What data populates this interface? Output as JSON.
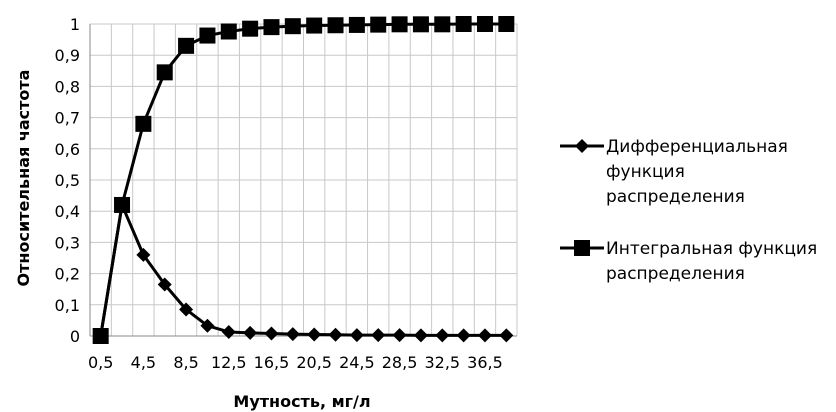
{
  "chart_data": {
    "type": "line",
    "xlabel": "Мутность, мг/л",
    "ylabel": "Относительная частота",
    "ylim": [
      0,
      1
    ],
    "y_ticks": [
      "0",
      "0,1",
      "0,2",
      "0,3",
      "0,4",
      "0,5",
      "0,6",
      "0,7",
      "0,8",
      "0,9",
      "1"
    ],
    "x_tick_labels": [
      "0,5",
      "4,5",
      "8,5",
      "12,5",
      "16,5",
      "20,5",
      "24,5",
      "28,5",
      "32,5",
      "36,5"
    ],
    "categories": [
      "0,5",
      "2,5",
      "4,5",
      "6,5",
      "8,5",
      "10,5",
      "12,5",
      "14,5",
      "16,5",
      "18,5",
      "20,5",
      "22,5",
      "24,5",
      "26,5",
      "28,5",
      "30,5",
      "32,5",
      "34,5",
      "36,5",
      "38,5"
    ],
    "grid": true,
    "legend_position": "right",
    "series": [
      {
        "name": "Дифференциальная функция распределения",
        "legend_lines": [
          "Дифференциальная",
          "функция",
          "распределения"
        ],
        "marker": "diamond",
        "values": [
          0,
          0.42,
          0.26,
          0.165,
          0.085,
          0.033,
          0.013,
          0.01,
          0.008,
          0.006,
          0.005,
          0.004,
          0.003,
          0.003,
          0.003,
          0.002,
          0.002,
          0.002,
          0.002,
          0.002
        ]
      },
      {
        "name": "Интегральная функция распределения",
        "legend_lines": [
          "Интегральная функция",
          "распределения"
        ],
        "marker": "square",
        "values": [
          0,
          0.42,
          0.68,
          0.845,
          0.93,
          0.963,
          0.976,
          0.985,
          0.99,
          0.993,
          0.995,
          0.996,
          0.997,
          0.998,
          0.999,
          0.999,
          0.999,
          1.0,
          1.0,
          1.0
        ]
      }
    ]
  }
}
